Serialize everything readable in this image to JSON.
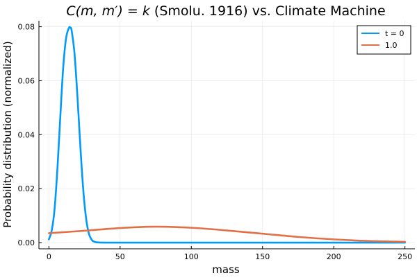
{
  "chart_data": {
    "type": "line",
    "title": "C(m, m′) = k (Smolu. 1916) vs. Climate Machine",
    "title_parts": {
      "math": "C(m, m′) = k",
      "rest": " (Smolu. 1916) vs. Climate Machine"
    },
    "xlabel": "mass",
    "ylabel": "Probability distribution (normalized)",
    "xlim": [
      -7,
      257
    ],
    "ylim": [
      -0.0023,
      0.0822
    ],
    "xticks": [
      0,
      50,
      100,
      150,
      200,
      250
    ],
    "xtick_labels": [
      "0",
      "50",
      "100",
      "150",
      "200",
      "250"
    ],
    "yticks": [
      0.0,
      0.02,
      0.04,
      0.06,
      0.08
    ],
    "ytick_labels": [
      "0.00",
      "0.02",
      "0.04",
      "0.06",
      "0.08"
    ],
    "grid": true,
    "legend_position": "top-right",
    "series": [
      {
        "name": "t = 0",
        "color": "#009AFA",
        "x": [
          0,
          2,
          4,
          6,
          8,
          10,
          12,
          14,
          15,
          16,
          18,
          20,
          22,
          24,
          26,
          28,
          30,
          32,
          35,
          40,
          50,
          100,
          150,
          200,
          250
        ],
        "y": [
          0.0012,
          0.0045,
          0.0125,
          0.0275,
          0.0465,
          0.0645,
          0.0755,
          0.0795,
          0.0797,
          0.0785,
          0.07,
          0.0545,
          0.0365,
          0.0205,
          0.0095,
          0.0035,
          0.0011,
          0.0003,
          5e-05,
          0.0,
          0.0,
          0.0,
          0.0,
          0.0,
          0.0
        ]
      },
      {
        "name": "1.0",
        "color": "#E26F46",
        "x": [
          0,
          25,
          50,
          75,
          100,
          125,
          150,
          175,
          200,
          225,
          250
        ],
        "y": [
          0.0035,
          0.0044,
          0.0054,
          0.0059,
          0.0055,
          0.0045,
          0.0033,
          0.0021,
          0.0012,
          0.0006,
          0.0003
        ]
      }
    ]
  }
}
